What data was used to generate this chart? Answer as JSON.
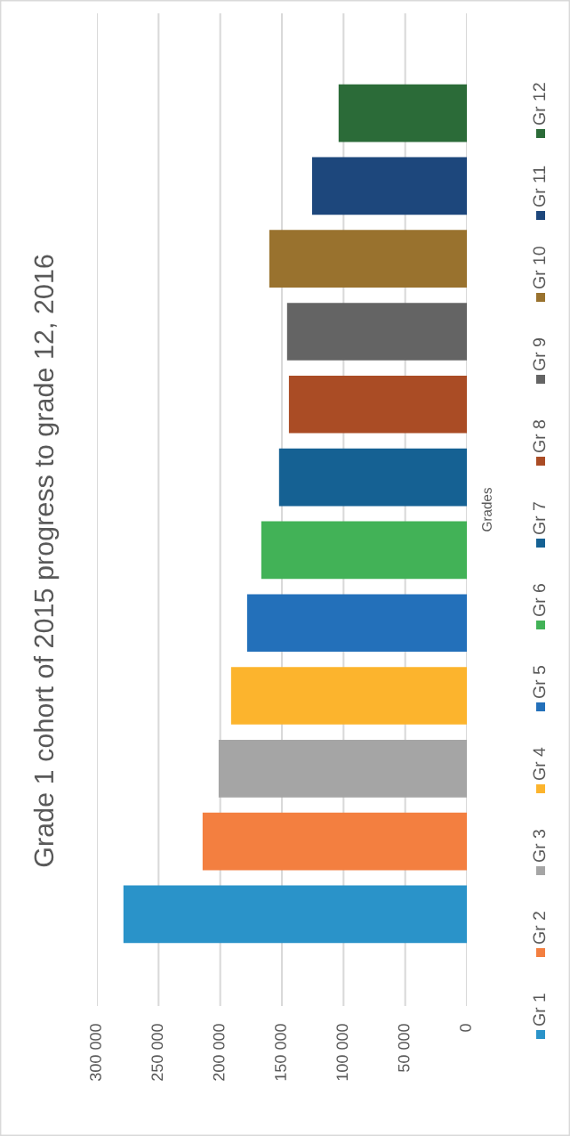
{
  "chart_data": {
    "type": "bar",
    "orientation": "horizontal",
    "title": "Grade 1 cohort of 2015 progress to grade 12, 2016",
    "ylabel": "Grades",
    "categories": [
      null
    ],
    "series": [
      {
        "name": "Gr 1",
        "color": "#2a93c9",
        "values": [
          278500
        ]
      },
      {
        "name": "Gr 2",
        "color": "#f37f40",
        "values": [
          214300
        ]
      },
      {
        "name": "Gr 3",
        "color": "#a5a5a5",
        "values": [
          201300
        ]
      },
      {
        "name": "Gr 4",
        "color": "#fcb42d",
        "values": [
          191200
        ]
      },
      {
        "name": "Gr 5",
        "color": "#2370ba",
        "values": [
          178200
        ]
      },
      {
        "name": "Gr 6",
        "color": "#42b257",
        "values": [
          166700
        ]
      },
      {
        "name": "Gr 7",
        "color": "#156193",
        "values": [
          152300
        ]
      },
      {
        "name": "Gr 8",
        "color": "#aa4c25",
        "values": [
          144300
        ]
      },
      {
        "name": "Gr 9",
        "color": "#646464",
        "values": [
          145800
        ]
      },
      {
        "name": "Gr 10",
        "color": "#99722e",
        "values": [
          160200
        ]
      },
      {
        "name": "Gr 11",
        "color": "#1d477c",
        "values": [
          125500
        ]
      },
      {
        "name": "Gr 12",
        "color": "#2b6b38",
        "values": [
          104000
        ]
      }
    ],
    "xlim": [
      300000,
      0
    ],
    "xticks": [
      {
        "value": 0,
        "label": "0"
      },
      {
        "value": 50000,
        "label": "50 000"
      },
      {
        "value": 100000,
        "label": "100 000"
      },
      {
        "value": 150000,
        "label": "150 000"
      },
      {
        "value": 200000,
        "label": "200 000"
      },
      {
        "value": 250000,
        "label": "250 000"
      },
      {
        "value": 300000,
        "label": "300 000"
      }
    ],
    "grid": "x",
    "legend": "right"
  }
}
